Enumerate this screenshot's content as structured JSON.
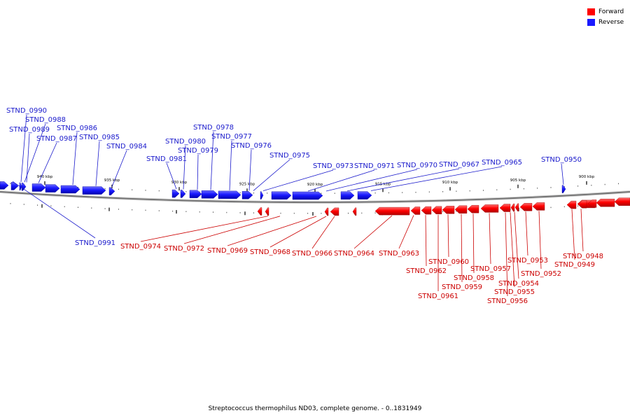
{
  "legend": {
    "forward_label": "Forward",
    "reverse_label": "Reverse",
    "forward_color": "#ff0000",
    "reverse_color": "#1a1aff"
  },
  "caption": "Streptococcus thermophilus ND03, complete genome. - 0..1831949",
  "kbp_ticks": [
    "940 kbp",
    "935 kbp",
    "930 kbp",
    "925 kbp",
    "920 kbp",
    "915 kbp",
    "910 kbp",
    "905 kbp",
    "900 kbp"
  ],
  "reverse_genes": [
    "STND_0991",
    "STND_0990",
    "STND_0989",
    "STND_0988",
    "STND_0987",
    "STND_0986",
    "STND_0985",
    "STND_0984",
    "STND_0981",
    "STND_0980",
    "STND_0979",
    "STND_0978",
    "STND_0977",
    "STND_0976",
    "STND_0975",
    "STND_0973",
    "STND_0971",
    "STND_0970",
    "STND_0967",
    "STND_0965",
    "STND_0950"
  ],
  "forward_genes": [
    "STND_0974",
    "STND_0972",
    "STND_0969",
    "STND_0968",
    "STND_0966",
    "STND_0964",
    "STND_0963",
    "STND_0962",
    "STND_0961",
    "STND_0960",
    "STND_0959",
    "STND_0958",
    "STND_0957",
    "STND_0956",
    "STND_0955",
    "STND_0954",
    "STND_0953",
    "STND_0952",
    "STND_0949",
    "STND_0948"
  ]
}
